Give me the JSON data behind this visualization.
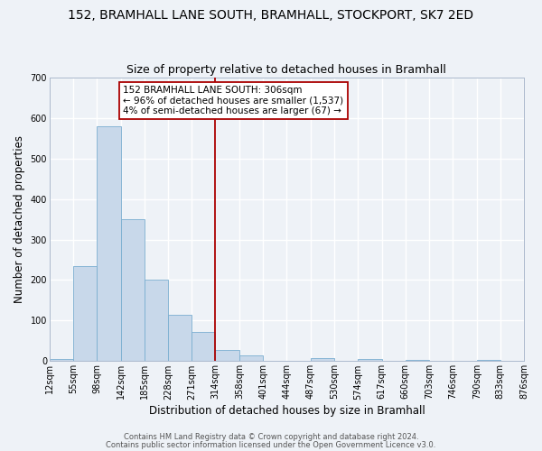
{
  "title": "152, BRAMHALL LANE SOUTH, BRAMHALL, STOCKPORT, SK7 2ED",
  "subtitle": "Size of property relative to detached houses in Bramhall",
  "xlabel": "Distribution of detached houses by size in Bramhall",
  "ylabel": "Number of detached properties",
  "bin_edges": [
    12,
    55,
    98,
    142,
    185,
    228,
    271,
    314,
    358,
    401,
    444,
    487,
    530,
    574,
    617,
    660,
    703,
    746,
    790,
    833,
    876
  ],
  "bin_labels": [
    "12sqm",
    "55sqm",
    "98sqm",
    "142sqm",
    "185sqm",
    "228sqm",
    "271sqm",
    "314sqm",
    "358sqm",
    "401sqm",
    "444sqm",
    "487sqm",
    "530sqm",
    "574sqm",
    "617sqm",
    "660sqm",
    "703sqm",
    "746sqm",
    "790sqm",
    "833sqm",
    "876sqm"
  ],
  "counts": [
    5,
    235,
    580,
    350,
    202,
    115,
    73,
    27,
    14,
    0,
    0,
    8,
    0,
    5,
    0,
    3,
    0,
    0,
    4,
    0
  ],
  "bar_color": "#c8d8ea",
  "bar_edge_color": "#7aaed0",
  "property_line_x": 314,
  "property_line_color": "#aa0000",
  "annotation_text": "152 BRAMHALL LANE SOUTH: 306sqm\n← 96% of detached houses are smaller (1,537)\n4% of semi-detached houses are larger (67) →",
  "annotation_box_color": "#ffffff",
  "annotation_box_edge_color": "#aa0000",
  "ylim": [
    0,
    700
  ],
  "yticks": [
    0,
    100,
    200,
    300,
    400,
    500,
    600,
    700
  ],
  "footer_line1": "Contains HM Land Registry data © Crown copyright and database right 2024.",
  "footer_line2": "Contains public sector information licensed under the Open Government Licence v3.0.",
  "background_color": "#eef2f7",
  "grid_color": "#ffffff",
  "title_fontsize": 10,
  "subtitle_fontsize": 9,
  "axis_label_fontsize": 8.5,
  "tick_fontsize": 7,
  "annotation_fontsize": 7.5,
  "footer_fontsize": 6
}
